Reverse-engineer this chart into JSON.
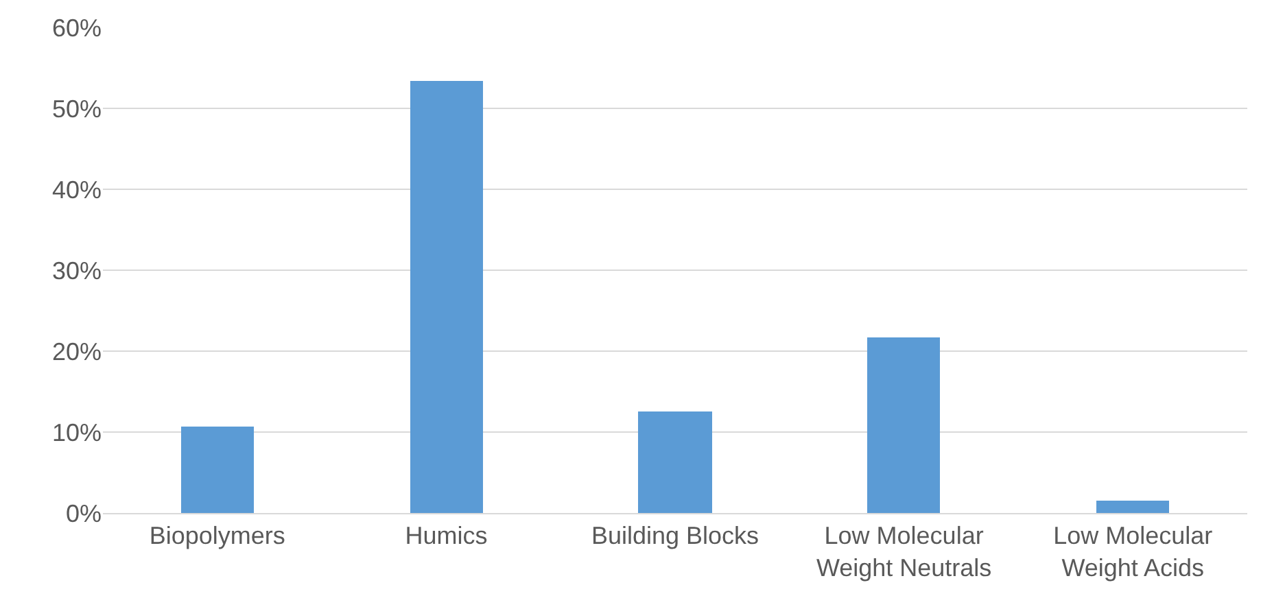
{
  "chart_data": {
    "type": "bar",
    "categories": [
      "Biopolymers",
      "Humics",
      "Building Blocks",
      "Low Molecular\nWeight Neutrals",
      "Low Molecular\nWeight Acids"
    ],
    "values": [
      10.7,
      53.4,
      12.5,
      21.7,
      1.5
    ],
    "color": "#5b9bd5",
    "ylim": [
      0,
      60
    ],
    "yticks": [
      {
        "value": 0,
        "label": "0%"
      },
      {
        "value": 10,
        "label": "10%"
      },
      {
        "value": 20,
        "label": "20%"
      },
      {
        "value": 30,
        "label": "30%"
      },
      {
        "value": 40,
        "label": "40%"
      },
      {
        "value": 50,
        "label": "50%"
      },
      {
        "value": 60,
        "label": "60%"
      }
    ],
    "grid": "y"
  }
}
